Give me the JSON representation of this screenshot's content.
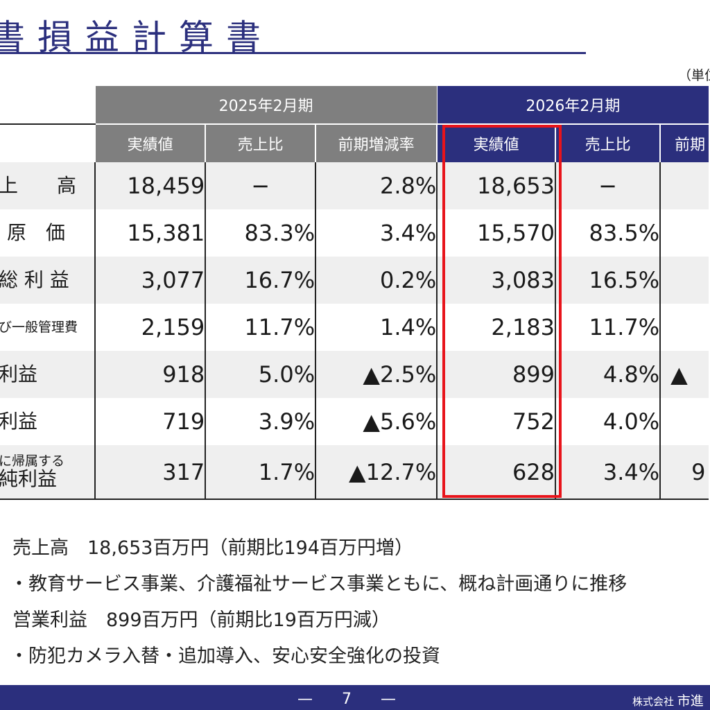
{
  "title": "書損益計算書",
  "unit_note": "（単位",
  "table": {
    "period_headers": [
      "2025年2月期",
      "2026年2月期"
    ],
    "sub_headers": [
      "実績値",
      "売上比",
      "前期増減率",
      "実績値",
      "売上比",
      "前期"
    ],
    "rows": [
      {
        "label": "上　　高",
        "label_small": "",
        "cells": [
          "18,459",
          "−",
          "2.8%",
          "18,653",
          "−",
          ""
        ]
      },
      {
        "label": "原　価",
        "label_small": "",
        "cells": [
          "15,381",
          "83.3%",
          "3.4%",
          "15,570",
          "83.5%",
          ""
        ]
      },
      {
        "label": "総 利 益",
        "label_small": "",
        "cells": [
          "3,077",
          "16.7%",
          "0.2%",
          "3,083",
          "16.5%",
          ""
        ]
      },
      {
        "label": "",
        "label_small": "び一般管理費",
        "cells": [
          "2,159",
          "11.7%",
          "1.4%",
          "2,183",
          "11.7%",
          ""
        ]
      },
      {
        "label": "利益",
        "label_small": "",
        "cells": [
          "918",
          "5.0%",
          "▲2.5%",
          "899",
          "4.8%",
          "▲"
        ]
      },
      {
        "label": "利益",
        "label_small": "",
        "cells": [
          "719",
          "3.9%",
          "▲5.6%",
          "752",
          "4.0%",
          ""
        ]
      },
      {
        "label": "純利益",
        "label_small": "に帰属する",
        "cells": [
          "317",
          "1.7%",
          "▲12.7%",
          "628",
          "3.4%",
          "9"
        ]
      }
    ]
  },
  "notes": [
    "売上高　18,653百万円（前期比194百万円増）",
    "・教育サービス事業、介護福祉サービス事業ともに、概ね計画通りに推移",
    "営業利益　899百万円（前期比19百万円減）",
    "・防犯カメラ入替・追加導入、安心安全強化の投資"
  ],
  "footer": {
    "page": "—　7　—",
    "company_prefix": "株式会社",
    "company_name": "市進"
  },
  "colors": {
    "navy": "#2b2f7d",
    "gray_header": "#7f7f7f",
    "highlight": "#e8141b",
    "row_alt": "#efefef"
  }
}
